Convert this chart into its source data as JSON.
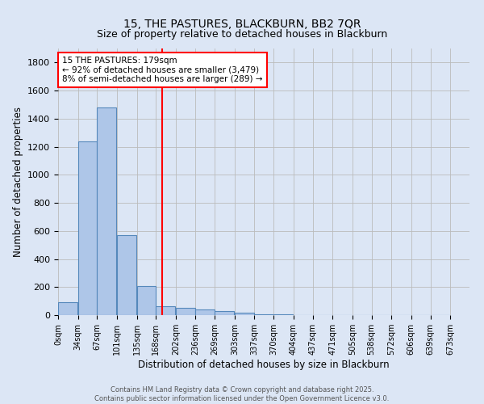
{
  "title_line1": "15, THE PASTURES, BLACKBURN, BB2 7QR",
  "title_line2": "Size of property relative to detached houses in Blackburn",
  "xlabel": "Distribution of detached houses by size in Blackburn",
  "ylabel": "Number of detached properties",
  "bin_labels": [
    "0sqm",
    "34sqm",
    "67sqm",
    "101sqm",
    "135sqm",
    "168sqm",
    "202sqm",
    "236sqm",
    "269sqm",
    "303sqm",
    "337sqm",
    "370sqm",
    "404sqm",
    "437sqm",
    "471sqm",
    "505sqm",
    "538sqm",
    "572sqm",
    "606sqm",
    "639sqm",
    "673sqm"
  ],
  "bar_values": [
    90,
    1240,
    1480,
    570,
    210,
    65,
    50,
    40,
    28,
    20,
    8,
    3,
    2,
    1,
    0,
    0,
    0,
    0,
    0,
    0
  ],
  "bar_color": "#aec6e8",
  "bar_edge_color": "#5588bb",
  "background_color": "#dce6f5",
  "grid_color": "#bbbbbb",
  "vline_x": 179,
  "vline_color": "red",
  "ylim": [
    0,
    1900
  ],
  "yticks": [
    0,
    200,
    400,
    600,
    800,
    1000,
    1200,
    1400,
    1600,
    1800
  ],
  "annotation_title": "15 THE PASTURES: 179sqm",
  "annotation_line2": "← 92% of detached houses are smaller (3,479)",
  "annotation_line3": "8% of semi-detached houses are larger (289) →",
  "annotation_box_color": "white",
  "annotation_box_edge": "red",
  "footer_line1": "Contains HM Land Registry data © Crown copyright and database right 2025.",
  "footer_line2": "Contains public sector information licensed under the Open Government Licence v3.0.",
  "bin_edges": [
    0,
    34,
    67,
    101,
    135,
    168,
    202,
    236,
    269,
    303,
    337,
    370,
    404,
    437,
    471,
    505,
    538,
    572,
    606,
    639,
    673
  ],
  "bin_width": 33,
  "xlim_max": 706
}
